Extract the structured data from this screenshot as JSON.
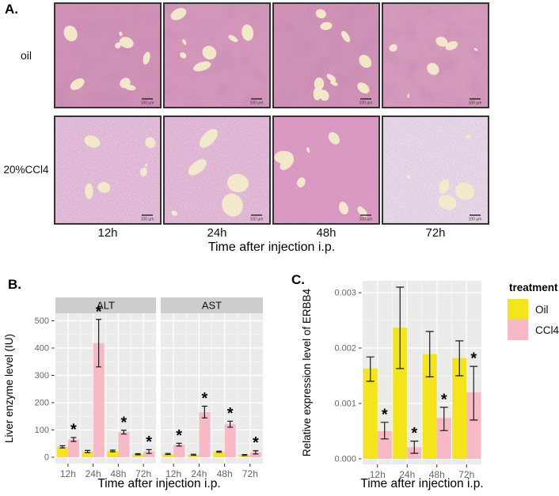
{
  "figure": {
    "panel_a_label": "A.",
    "panel_b_label": "B.",
    "panel_c_label": "C."
  },
  "panel_a": {
    "row_labels": [
      "oil",
      "20%CCl4"
    ],
    "col_labels": [
      "12h",
      "24h",
      "48h",
      "72h"
    ],
    "axis_caption": "Time after injection i.p.",
    "scale_label": "100 µm",
    "tiles": [
      {
        "row": 0,
        "col": 0,
        "seed": 7,
        "base": "#D494B8",
        "speckle": "#8C4074",
        "mottle": "#7E3765",
        "vessels": 8,
        "vmax": 8,
        "noise_opacity": 0.95
      },
      {
        "row": 0,
        "col": 1,
        "seed": 12,
        "base": "#D89BBC",
        "speckle": "#8C4074",
        "mottle": "#7E3765",
        "vessels": 7,
        "vmax": 11,
        "noise_opacity": 0.95
      },
      {
        "row": 0,
        "col": 2,
        "seed": 21,
        "base": "#D494B8",
        "speckle": "#8C4074",
        "mottle": "#7E3765",
        "vessels": 10,
        "vmax": 7,
        "noise_opacity": 0.95
      },
      {
        "row": 0,
        "col": 3,
        "seed": 33,
        "base": "#D99FBE",
        "speckle": "#8C4074",
        "mottle": "#7E3765",
        "vessels": 6,
        "vmax": 8,
        "noise_opacity": 0.9
      },
      {
        "row": 1,
        "col": 0,
        "seed": 41,
        "base": "#EBC3DB",
        "speckle": "#7C4E96",
        "mottle": "",
        "vessels": 6,
        "vmax": 9,
        "noise_opacity": 0.85
      },
      {
        "row": 1,
        "col": 1,
        "seed": 52,
        "base": "#EAC0D8",
        "speckle": "#7C4E96",
        "mottle": "",
        "vessels": 5,
        "vmax": 13,
        "noise_opacity": 0.85
      },
      {
        "row": 1,
        "col": 2,
        "seed": 63,
        "base": "#DE9DC3",
        "speckle": "#8F4187",
        "mottle": "",
        "vessels": 7,
        "vmax": 10,
        "noise_opacity": 0.9
      },
      {
        "row": 1,
        "col": 3,
        "seed": 74,
        "base": "#EADDE9",
        "speckle": "#8A68A6",
        "mottle": "",
        "vessels": 5,
        "vmax": 12,
        "noise_opacity": 0.72
      }
    ]
  },
  "colors": {
    "oil": "#F4E41C",
    "ccl4": "#F7B9C5",
    "panel_bg": "#EBEBEB",
    "strip_bg": "#CDCDCD",
    "grid": "#FFFFFF",
    "tick_text": "#666666",
    "error_bar": "#1A1A1A"
  },
  "legend": {
    "title": "treatment",
    "items": [
      {
        "label": "Oil",
        "color": "#F4E41C"
      },
      {
        "label": "CCl4",
        "color": "#F7B9C5"
      }
    ]
  },
  "chart_data": [
    {
      "id": "liver-enzymes",
      "type": "bar",
      "ylabel": "Liver enzyme level (IU)",
      "xlabel": "Time after injection i.p.",
      "categories": [
        "12h",
        "24h",
        "48h",
        "72h"
      ],
      "yticks": [
        0,
        100,
        200,
        300,
        400,
        500
      ],
      "ytick_labels": [
        "0",
        "100",
        "200",
        "300",
        "400",
        "500"
      ],
      "ylim": [
        0,
        530
      ],
      "minor_step": 50,
      "grid": true,
      "legend_position": "none",
      "facets": [
        {
          "label": "ALT",
          "series": [
            {
              "name": "Oil",
              "values": [
                38,
                21,
                23,
                11
              ],
              "err_lo": [
                34,
                17,
                20,
                9
              ],
              "err_hi": [
                42,
                25,
                26,
                13
              ],
              "sig": [
                false,
                false,
                false,
                false
              ]
            },
            {
              "name": "CCl4",
              "values": [
                65,
                418,
                92,
                21
              ],
              "err_lo": [
                58,
                331,
                85,
                14
              ],
              "err_hi": [
                72,
                505,
                99,
                28
              ],
              "sig": [
                true,
                true,
                true,
                true
              ]
            }
          ]
        },
        {
          "label": "AST",
          "series": [
            {
              "name": "Oil",
              "values": [
                12,
                9,
                20,
                8
              ],
              "err_lo": [
                10,
                7,
                18,
                6
              ],
              "err_hi": [
                14,
                11,
                22,
                10
              ],
              "sig": [
                false,
                false,
                false,
                false
              ]
            },
            {
              "name": "CCl4",
              "values": [
                46,
                165,
                121,
                18
              ],
              "err_lo": [
                41,
                144,
                110,
                12
              ],
              "err_hi": [
                51,
                187,
                132,
                24
              ],
              "sig": [
                true,
                true,
                true,
                true
              ]
            }
          ]
        }
      ]
    },
    {
      "id": "erbb4-expression",
      "type": "bar",
      "ylabel": "Relative expression level of ERBB4",
      "xlabel": "Time after injection i.p.",
      "categories": [
        "12h",
        "24h",
        "48h",
        "72h"
      ],
      "yticks": [
        0,
        0.001,
        0.002,
        0.003
      ],
      "ytick_labels": [
        "0.000",
        "0.001",
        "0.002",
        "0.003"
      ],
      "ylim": [
        0,
        0.00321
      ],
      "minor_step": 0.0005,
      "grid": true,
      "legend_position": "right",
      "facets": [
        {
          "label": "",
          "series": [
            {
              "name": "Oil",
              "values": [
                0.00163,
                0.00237,
                0.00189,
                0.00182
              ],
              "err_lo": [
                0.0014,
                0.00163,
                0.00148,
                0.0015
              ],
              "err_hi": [
                0.00184,
                0.0031,
                0.0023,
                0.00213
              ],
              "sig": [
                false,
                false,
                false,
                false
              ]
            },
            {
              "name": "CCl4",
              "values": [
                0.0005,
                0.00021,
                0.00074,
                0.0012
              ],
              "err_lo": [
                0.00036,
                0.0001,
                0.00051,
                0.0007
              ],
              "err_hi": [
                0.00066,
                0.00032,
                0.00093,
                0.00167
              ],
              "sig": [
                true,
                true,
                true,
                true
              ]
            }
          ]
        }
      ]
    }
  ]
}
